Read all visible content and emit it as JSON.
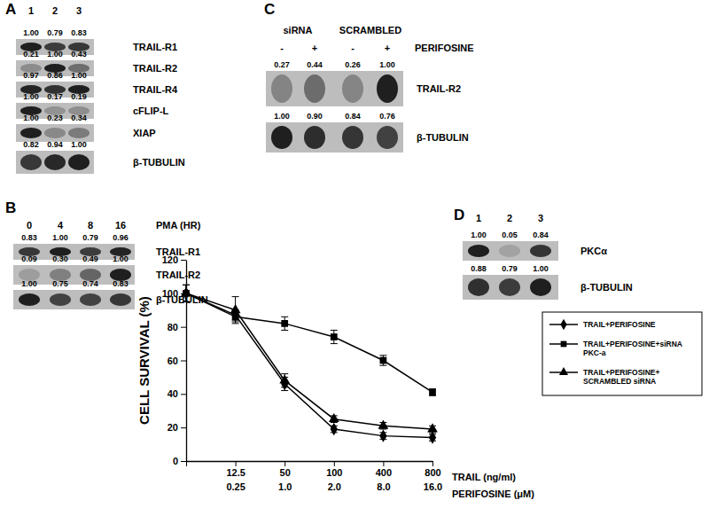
{
  "blots": [
    {
      "panel": "A",
      "lanes": [
        "1",
        "2",
        "3"
      ],
      "rows": [
        {
          "label": "TRAIL-R1",
          "values": [
            "1.00",
            "0.79",
            "0.83"
          ]
        },
        {
          "label": "TRAIL-R2",
          "values": [
            "0.21",
            "1.00",
            "0.43"
          ]
        },
        {
          "label": "TRAIL-R4",
          "values": [
            "0.97",
            "0.86",
            "1.00"
          ]
        },
        {
          "label": "cFLIP-L",
          "values": [
            "1.00",
            "0.17",
            "0.19"
          ]
        },
        {
          "label": "XIAP",
          "values": [
            "1.00",
            "0.23",
            "0.34"
          ]
        },
        {
          "label": "β-TUBULIN",
          "values": [
            "0.82",
            "0.94",
            "1.00"
          ]
        }
      ]
    },
    {
      "panel": "B",
      "lanes": [
        "0",
        "4",
        "8",
        "16"
      ],
      "lanes_title": "PMA (HR)",
      "rows": [
        {
          "label": "TRAIL-R1",
          "values": [
            "0.83",
            "1.00",
            "0.79",
            "0.96"
          ]
        },
        {
          "label": "TRAIL-R2",
          "values": [
            "0.09",
            "0.30",
            "0.49",
            "1.00"
          ]
        },
        {
          "label": "β-TUBULIN",
          "values": [
            "1.00",
            "0.75",
            "0.74",
            "0.83"
          ]
        }
      ]
    },
    {
      "panel": "C",
      "groups": [
        "siRNA",
        "SCRAMBLED"
      ],
      "lanes": [
        "-",
        "+",
        "-",
        "+"
      ],
      "lanes_title": "PERIFOSINE",
      "rows": [
        {
          "label": "TRAIL-R2",
          "values": [
            "0.27",
            "0.44",
            "0.26",
            "1.00"
          ]
        },
        {
          "label": "β-TUBULIN",
          "values": [
            "1.00",
            "0.90",
            "0.84",
            "0.76"
          ]
        }
      ]
    },
    {
      "panel": "D",
      "lanes": [
        "1",
        "2",
        "3"
      ],
      "rows": [
        {
          "label": "PKCα",
          "values": [
            "1.00",
            "0.05",
            "0.84"
          ]
        },
        {
          "label": "β-TUBULIN",
          "values": [
            "0.88",
            "0.79",
            "1.00"
          ]
        }
      ]
    }
  ],
  "chart_data": {
    "type": "line",
    "y_title": "CELL SURVIVAL (%)",
    "x_title": "TRAIL (ng/ml)",
    "x2_title": "PERIFOSINE (μM)",
    "categories": [
      null,
      "12.5",
      "50",
      "100",
      "400",
      "800"
    ],
    "categories_2": [
      null,
      "0.25",
      "1.0",
      "2.0",
      "8.0",
      "16.0"
    ],
    "ylim": [
      0,
      120
    ],
    "yticks": [
      0,
      20,
      40,
      60,
      80,
      100,
      120
    ],
    "legend": "right",
    "series": [
      {
        "name": "TRAIL+PERIFOSINE",
        "color": "#000000",
        "marker": "diamond",
        "values": [
          100,
          87,
          46,
          19,
          15,
          14
        ],
        "errors": [
          5,
          3,
          4,
          2,
          2,
          2
        ]
      },
      {
        "name": "TRAIL+PERIFOSINE+siRNA PKC-a",
        "color": "#000000",
        "marker": "square",
        "values": [
          100,
          86,
          82,
          74,
          60,
          41
        ],
        "errors": [
          5,
          3,
          4,
          4,
          3,
          2
        ]
      },
      {
        "name": "TRAIL+PERIFOSINE+ SCRAMBLED siRNA",
        "color": "#000000",
        "marker": "triangle",
        "values": [
          100,
          90,
          48,
          25,
          21,
          19
        ],
        "errors": [
          5,
          8,
          4,
          2,
          2,
          2
        ]
      }
    ]
  }
}
